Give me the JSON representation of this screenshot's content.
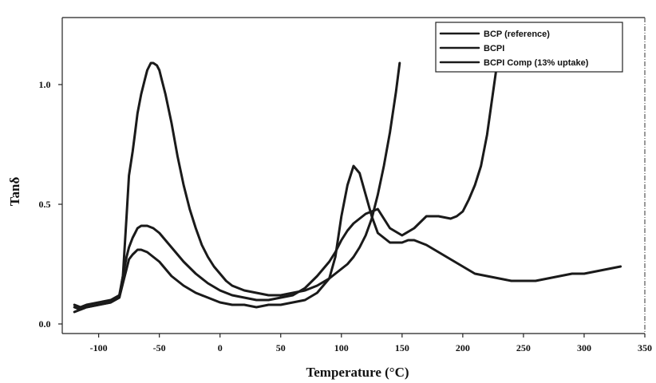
{
  "chart_data": {
    "type": "line",
    "xlabel": "Temperature (°C)",
    "ylabel": "Tanδ",
    "xlim": [
      -130,
      350
    ],
    "ylim": [
      -0.04,
      1.28
    ],
    "x_ticks": [
      -100,
      -50,
      0,
      50,
      100,
      150,
      200,
      250,
      300,
      350
    ],
    "y_ticks": [
      0.0,
      0.5,
      1.0
    ],
    "y_tick_labels": [
      "0.0",
      "0.5",
      "1.0"
    ],
    "legend_position": "top-right",
    "grid": false,
    "line_color": "#1a1a1a",
    "series": [
      {
        "name": "BCP (reference)",
        "x": [
          -120,
          -115,
          -110,
          -100,
          -90,
          -83,
          -80,
          -77,
          -75,
          -72,
          -70,
          -68,
          -65,
          -62,
          -60,
          -57,
          -55,
          -52,
          -50,
          -48,
          -45,
          -40,
          -35,
          -30,
          -25,
          -20,
          -15,
          -10,
          -5,
          0,
          5,
          10,
          20,
          30,
          40,
          50,
          60,
          70,
          80,
          90,
          95,
          100,
          105,
          110,
          115,
          120,
          125,
          130,
          135,
          140,
          145,
          148
        ],
        "y": [
          0.05,
          0.06,
          0.07,
          0.08,
          0.09,
          0.11,
          0.2,
          0.45,
          0.62,
          0.72,
          0.8,
          0.88,
          0.96,
          1.02,
          1.06,
          1.09,
          1.09,
          1.08,
          1.06,
          1.02,
          0.96,
          0.84,
          0.7,
          0.58,
          0.48,
          0.4,
          0.33,
          0.28,
          0.24,
          0.21,
          0.18,
          0.16,
          0.14,
          0.13,
          0.12,
          0.12,
          0.13,
          0.14,
          0.16,
          0.19,
          0.21,
          0.23,
          0.25,
          0.28,
          0.32,
          0.37,
          0.44,
          0.54,
          0.66,
          0.8,
          0.97,
          1.09
        ]
      },
      {
        "name": "BCPI",
        "x": [
          -120,
          -115,
          -110,
          -100,
          -90,
          -83,
          -80,
          -77,
          -75,
          -72,
          -70,
          -68,
          -65,
          -60,
          -55,
          -50,
          -45,
          -40,
          -30,
          -20,
          -10,
          0,
          10,
          20,
          30,
          40,
          50,
          60,
          70,
          80,
          90,
          95,
          100,
          105,
          110,
          115,
          120,
          125,
          130,
          140,
          150,
          160,
          170,
          180,
          190,
          195,
          200,
          205,
          210,
          215,
          220,
          225,
          230
        ],
        "y": [
          0.08,
          0.07,
          0.08,
          0.09,
          0.1,
          0.12,
          0.2,
          0.28,
          0.32,
          0.36,
          0.38,
          0.4,
          0.41,
          0.41,
          0.4,
          0.38,
          0.35,
          0.32,
          0.26,
          0.21,
          0.17,
          0.14,
          0.12,
          0.11,
          0.1,
          0.1,
          0.11,
          0.12,
          0.15,
          0.2,
          0.26,
          0.3,
          0.35,
          0.39,
          0.42,
          0.44,
          0.46,
          0.47,
          0.48,
          0.4,
          0.37,
          0.4,
          0.45,
          0.45,
          0.44,
          0.45,
          0.47,
          0.52,
          0.58,
          0.66,
          0.79,
          0.97,
          1.15
        ]
      },
      {
        "name": "BCPI Comp (13% uptake)",
        "x": [
          -120,
          -115,
          -110,
          -100,
          -90,
          -83,
          -80,
          -77,
          -75,
          -72,
          -70,
          -68,
          -65,
          -60,
          -55,
          -50,
          -45,
          -40,
          -30,
          -20,
          -10,
          0,
          10,
          20,
          30,
          40,
          50,
          60,
          70,
          80,
          90,
          95,
          100,
          105,
          110,
          115,
          120,
          125,
          130,
          140,
          150,
          155,
          160,
          165,
          170,
          180,
          190,
          200,
          210,
          220,
          230,
          240,
          250,
          260,
          270,
          280,
          290,
          300,
          310,
          320,
          330
        ],
        "y": [
          0.07,
          0.06,
          0.07,
          0.08,
          0.09,
          0.11,
          0.17,
          0.23,
          0.27,
          0.29,
          0.3,
          0.31,
          0.31,
          0.3,
          0.28,
          0.26,
          0.23,
          0.2,
          0.16,
          0.13,
          0.11,
          0.09,
          0.08,
          0.08,
          0.07,
          0.08,
          0.08,
          0.09,
          0.1,
          0.13,
          0.19,
          0.28,
          0.45,
          0.58,
          0.66,
          0.63,
          0.54,
          0.45,
          0.38,
          0.34,
          0.34,
          0.35,
          0.35,
          0.34,
          0.33,
          0.3,
          0.27,
          0.24,
          0.21,
          0.2,
          0.19,
          0.18,
          0.18,
          0.18,
          0.19,
          0.2,
          0.21,
          0.21,
          0.22,
          0.23,
          0.24
        ]
      }
    ]
  }
}
